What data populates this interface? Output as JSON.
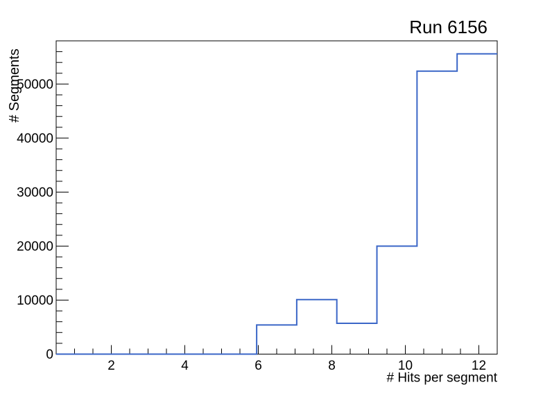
{
  "window": {
    "background": "#ffffff"
  },
  "chart_data": {
    "type": "histogram-step",
    "title": "Run 6156",
    "xlabel": "# Hits per segment",
    "ylabel": "# Segments",
    "xlim": [
      0.5,
      12.5
    ],
    "ylim": [
      0,
      58000
    ],
    "x_major_ticks": [
      2,
      4,
      6,
      8,
      10,
      12
    ],
    "x_minor_tick_step": 0.5,
    "y_major_ticks": [
      0,
      10000,
      20000,
      30000,
      40000,
      50000
    ],
    "y_minor_tick_step": 2000,
    "bin_edges": [
      0.5,
      1.591,
      2.682,
      3.773,
      4.864,
      5.955,
      7.045,
      8.136,
      9.227,
      10.318,
      11.409,
      12.5
    ],
    "counts": [
      0,
      0,
      0,
      0,
      0,
      5400,
      10100,
      5700,
      20000,
      52400,
      55600
    ],
    "grid": false,
    "legend": null,
    "line_color": "#3a66c7",
    "line_width": 2,
    "frame_color": "#000000",
    "background_color": "#ffffff"
  }
}
